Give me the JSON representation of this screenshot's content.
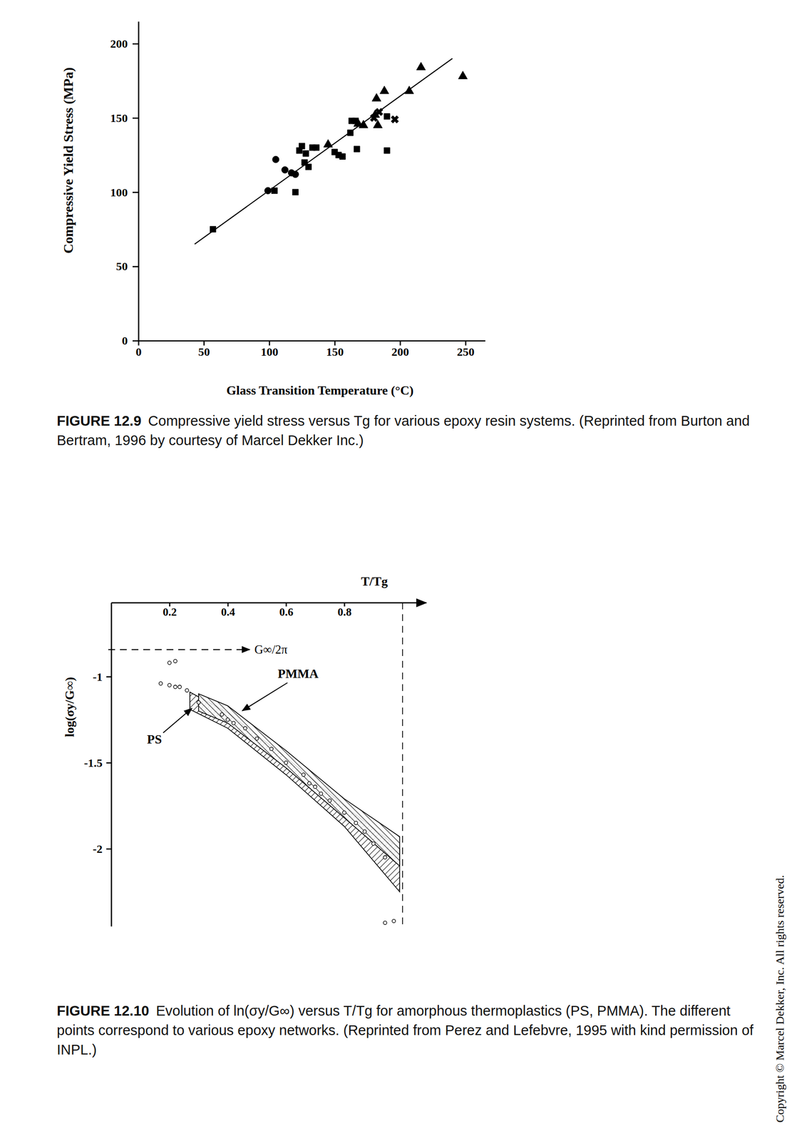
{
  "chart_data": [
    {
      "type": "scatter",
      "x_label": "Glass Transition Temperature (°C)",
      "y_label": "Compressive Yield Stress (MPa)",
      "xlim": [
        0,
        265
      ],
      "ylim": [
        0,
        215
      ],
      "xticks": [
        0,
        50,
        100,
        150,
        200,
        250
      ],
      "yticks": [
        0,
        50,
        100,
        150,
        200
      ],
      "grid": false,
      "series": [
        {
          "marker": "circle",
          "color": "#000000",
          "x": [
            105,
            112,
            117,
            120,
            99
          ],
          "values": [
            122,
            115,
            113,
            112,
            101
          ]
        },
        {
          "marker": "square",
          "color": "#000000",
          "x": [
            57,
            104,
            120,
            123,
            125,
            128,
            133,
            136,
            127,
            130,
            150,
            153,
            156,
            162,
            163,
            166,
            167,
            190,
            190
          ],
          "values": [
            75,
            101,
            100,
            128,
            131,
            126,
            130,
            130,
            120,
            117,
            127,
            125,
            124,
            140,
            148,
            148,
            129,
            128,
            151
          ]
        },
        {
          "marker": "triangle",
          "color": "#000000",
          "x": [
            145,
            168,
            172,
            181,
            182,
            183,
            188,
            207,
            216,
            248
          ],
          "values": [
            132,
            146,
            145,
            152,
            163,
            145,
            168,
            168,
            184,
            178
          ]
        },
        {
          "marker": "x",
          "color": "#000000",
          "x": [
            180,
            184,
            196
          ],
          "values": [
            150,
            154,
            149
          ]
        },
        {
          "type": "line",
          "line_style": "solid",
          "color": "#000000",
          "x": [
            43,
            240
          ],
          "values": [
            65,
            190
          ]
        }
      ],
      "caption_label": "FIGURE 12.9",
      "caption": "Compressive yield stress versus Tg for various epoxy resin systems. (Reprinted from Burton and Bertram, 1996 by courtesy of Marcel Dekker Inc.)"
    },
    {
      "type": "scatter",
      "x_label": "T/Tg",
      "y_label": "log(σy/G∞)",
      "xlim": [
        0,
        1.08
      ],
      "ylim": [
        -2.45,
        -0.57
      ],
      "xticks": [
        0.2,
        0.4,
        0.6,
        0.8
      ],
      "yticks": [
        -2,
        -1.5,
        -1
      ],
      "grid": false,
      "series": [
        {
          "name": "PS",
          "type": "band",
          "color": "#000000",
          "x": [
            0.27,
            0.4,
            0.6,
            0.8,
            0.99
          ],
          "upper": [
            -1.09,
            -1.21,
            -1.47,
            -1.75,
            -2.0
          ],
          "lower": [
            -1.19,
            -1.3,
            -1.57,
            -1.87,
            -2.25
          ]
        },
        {
          "name": "PMMA",
          "type": "band",
          "color": "#000000",
          "x": [
            0.3,
            0.4,
            0.6,
            0.8,
            0.99
          ],
          "upper": [
            -1.1,
            -1.17,
            -1.43,
            -1.71,
            -1.93
          ],
          "lower": [
            -1.2,
            -1.27,
            -1.53,
            -1.82,
            -2.1
          ]
        },
        {
          "type": "scatter",
          "marker": "open_circle",
          "color": "#000000",
          "x": [
            0.17,
            0.2,
            0.2,
            0.22,
            0.22,
            0.235,
            0.26,
            0.3,
            0.38,
            0.4,
            0.42,
            0.46,
            0.5,
            0.55,
            0.6,
            0.66,
            0.68,
            0.7,
            0.72,
            0.75,
            0.8,
            0.84,
            0.87,
            0.9,
            0.94,
            0.94,
            0.97
          ],
          "values": [
            -1.04,
            -0.92,
            -1.05,
            -0.91,
            -1.06,
            -1.06,
            -1.08,
            -1.15,
            -1.22,
            -1.25,
            -1.27,
            -1.3,
            -1.36,
            -1.42,
            -1.5,
            -1.57,
            -1.62,
            -1.64,
            -1.68,
            -1.72,
            -1.79,
            -1.85,
            -1.9,
            -1.97,
            -2.05,
            -2.43,
            -2.42
          ]
        }
      ],
      "reference_lines": [
        {
          "axis": "y",
          "value": -0.843,
          "label": "G∞/2π",
          "line_style": "dashed"
        },
        {
          "axis": "x",
          "value": 1,
          "line_style": "dashed"
        }
      ],
      "caption_label": "FIGURE 12.10",
      "caption": "Evolution of ln(σy/G∞) versus T/Tg for amorphous thermoplastics (PS, PMMA). The different points correspond to various epoxy networks. (Reprinted from Perez and Lefebvre, 1995 with kind permission of INPL.)"
    }
  ],
  "copyright": "Copyright © Marcel Dekker, Inc. All rights reserved."
}
